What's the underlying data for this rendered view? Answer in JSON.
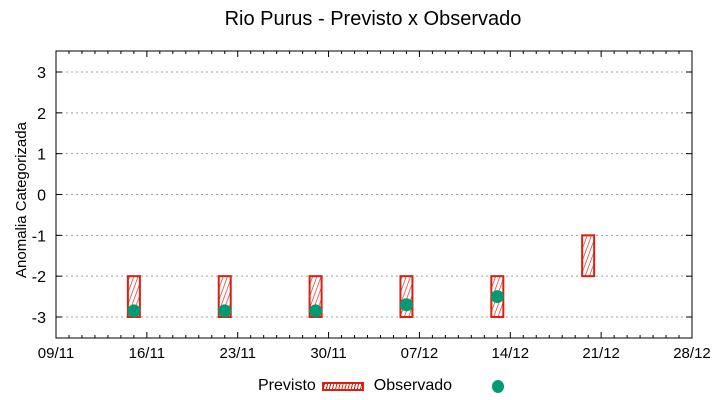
{
  "chart_data": {
    "type": "bar",
    "title": "Rio Purus - Previsto x Observado",
    "xlabel": "",
    "ylabel": "Anomalia Categorizada",
    "ylim": [
      -3.5,
      3.5
    ],
    "yticks": [
      "3",
      "2",
      "1",
      "0",
      "-1",
      "-2",
      "-3"
    ],
    "xticks": [
      "09/11",
      "16/11",
      "23/11",
      "30/11",
      "07/12",
      "14/12",
      "21/12",
      "28/12"
    ],
    "grid": "horizontal dotted",
    "legend_position": "bottom",
    "categories": [
      "15/11",
      "22/11",
      "29/11",
      "06/12",
      "13/12",
      "20/12"
    ],
    "series": [
      {
        "name": "Previsto",
        "style": "floating hatched bar (range)",
        "color": "#dd1f10",
        "ranges": [
          [
            -3,
            -2
          ],
          [
            -3,
            -2
          ],
          [
            -3,
            -2
          ],
          [
            -3,
            -2
          ],
          [
            -3,
            -2
          ],
          [
            -2,
            -1
          ]
        ]
      },
      {
        "name": "Observado",
        "style": "point",
        "color": "#009b72",
        "values": [
          -2.85,
          -2.85,
          -2.85,
          -2.7,
          -2.5,
          null
        ]
      }
    ]
  },
  "legend": {
    "previsto_label": "Previsto",
    "observado_label": "Observado"
  }
}
